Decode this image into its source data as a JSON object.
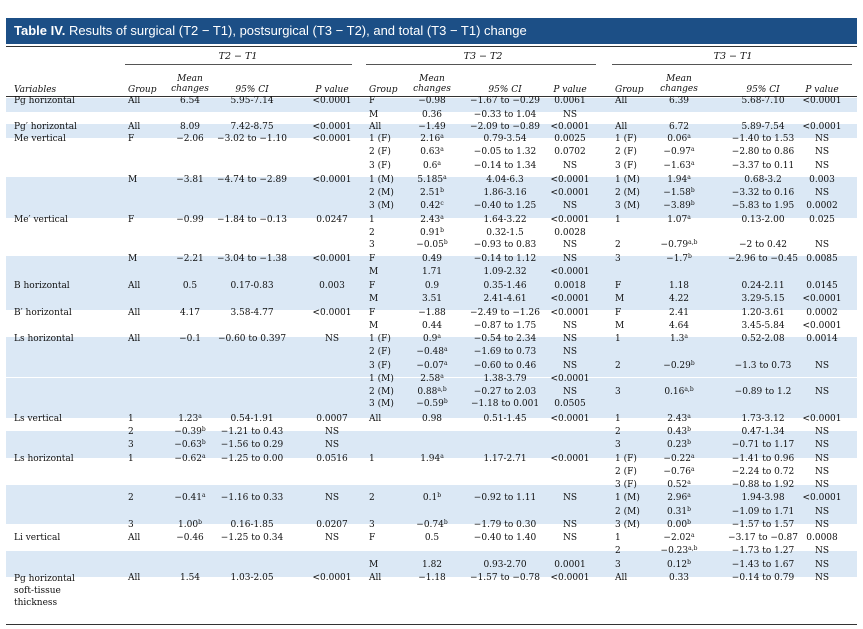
{
  "title": {
    "label": "Table IV.",
    "text": "Results of surgical (T2 − T1), postsurgical (T3 − T2), and total (T3 − T1) change"
  },
  "group_headers": [
    "T2 − T1",
    "T3 − T2",
    "T3 − T1"
  ],
  "column_headers": [
    "Variables",
    "Group",
    "Mean changes",
    "95% CI",
    "P value",
    "Group",
    "Mean changes",
    "95% CI",
    "P value",
    "Group",
    "Mean changes",
    "95% CI",
    "P value"
  ],
  "rows": [
    [
      "Pg horizontal",
      "All",
      "6.54",
      "5.95-7.14",
      "<0.0001",
      "F",
      "−0.98",
      "−1.67 to −0.29",
      "0.0061",
      "All",
      "6.39",
      "5.68-7.10",
      "<0.0001"
    ],
    [
      "",
      "",
      "",
      "",
      "",
      "M",
      "0.36",
      "−0.33 to 1.04",
      "NS",
      "",
      "",
      "",
      ""
    ],
    [
      "Pg′ horizontal",
      "All",
      "8.09",
      "7.42-8.75",
      "<0.0001",
      "All",
      "−1.49",
      "−2.09 to −0.89",
      "<0.0001",
      "All",
      "6.72",
      "5.89-7.54",
      "<0.0001"
    ],
    [
      "Me vertical",
      "F",
      "−2.06",
      "−3.02 to −1.10",
      "<0.0001",
      "1 (F)",
      "2.16ᵃ",
      "0.79-3.54",
      "0.0025",
      "1 (F)",
      "0.06ᵃ",
      "−1.40 to 1.53",
      "NS"
    ],
    [
      "",
      "",
      "",
      "",
      "",
      "2 (F)",
      "0.63ᵃ",
      "−0.05 to 1.32",
      "0.0702",
      "2 (F)",
      "−0.97ᵃ",
      "−2.80 to 0.86",
      "NS"
    ],
    [
      "",
      "",
      "",
      "",
      "",
      "3 (F)",
      "0.6ᵃ",
      "−0.14 to 1.34",
      "NS",
      "3 (F)",
      "−1.63ᵃ",
      "−3.37 to 0.11",
      "NS"
    ],
    [
      "",
      "M",
      "−3.81",
      "−4.74 to −2.89",
      "<0.0001",
      "1 (M)",
      "5.185ᵃ",
      "4.04-6.3",
      "<0.0001",
      "1 (M)",
      "1.94ᵃ",
      "0.68-3.2",
      "0.003"
    ],
    [
      "",
      "",
      "",
      "",
      "",
      "2 (M)",
      "2.51ᵇ",
      "1.86-3.16",
      "<0.0001",
      "2 (M)",
      "−1.58ᵇ",
      "−3.32 to 0.16",
      "NS"
    ],
    [
      "",
      "",
      "",
      "",
      "",
      "3 (M)",
      "0.42ᶜ",
      "−0.40 to 1.25",
      "NS",
      "3 (M)",
      "−3.89ᵇ",
      "−5.83 to 1.95",
      "0.0002"
    ],
    [
      "Me′ vertical",
      "F",
      "−0.99",
      "−1.84 to −0.13",
      "0.0247",
      "1",
      "2.43ᵃ",
      "1.64-3.22",
      "<0.0001",
      "1",
      "1.07ᵃ",
      "0.13-2.00",
      "0.025"
    ],
    [
      "",
      "",
      "",
      "",
      "",
      "2",
      "0.91ᵇ",
      "0.32-1.5",
      "0.0028",
      "",
      "",
      "",
      ""
    ],
    [
      "",
      "",
      "",
      "",
      "",
      "3",
      "−0.05ᵇ",
      "−0.93 to 0.83",
      "NS",
      "2",
      "−0.79ᵃ˒ᵇ",
      "−2 to 0.42",
      "NS"
    ],
    [
      "",
      "M",
      "−2.21",
      "−3.04 to −1.38",
      "<0.0001",
      "F",
      "0.49",
      "−0.14 to 1.12",
      "NS",
      "3",
      "−1.7ᵇ",
      "−2.96 to −0.45",
      "0.0085"
    ],
    [
      "",
      "",
      "",
      "",
      "",
      "M",
      "1.71",
      "1.09-2.32",
      "<0.0001",
      "",
      "",
      "",
      ""
    ],
    [
      "B horizontal",
      "All",
      "0.5",
      "0.17-0.83",
      "0.003",
      "F",
      "0.9",
      "0.35-1.46",
      "0.0018",
      "F",
      "1.18",
      "0.24-2.11",
      "0.0145"
    ],
    [
      "",
      "",
      "",
      "",
      "",
      "M",
      "3.51",
      "2.41-4.61",
      "<0.0001",
      "M",
      "4.22",
      "3.29-5.15",
      "<0.0001"
    ],
    [
      "B′ horizontal",
      "All",
      "4.17",
      "3.58-4.77",
      "<0.0001",
      "F",
      "−1.88",
      "−2.49 to −1.26",
      "<0.0001",
      "F",
      "2.41",
      "1.20-3.61",
      "0.0002"
    ],
    [
      "",
      "",
      "",
      "",
      "",
      "M",
      "0.44",
      "−0.87 to 1.75",
      "NS",
      "M",
      "4.64",
      "3.45-5.84",
      "<0.0001"
    ],
    [
      "Ls horizontal",
      "All",
      "−0.1",
      "−0.60 to 0.397",
      "NS",
      "1 (F)",
      "0.9ᵃ",
      "−0.54 to 2.34",
      "NS",
      "1",
      "1.3ᵃ",
      "0.52-2.08",
      "0.0014"
    ],
    [
      "",
      "",
      "",
      "",
      "",
      "2 (F)",
      "−0.48ᵃ",
      "−1.69 to 0.73",
      "NS",
      "",
      "",
      "",
      ""
    ],
    [
      "",
      "",
      "",
      "",
      "",
      "3 (F)",
      "−0.07ᵃ",
      "−0.60 to 0.46",
      "NS",
      "2",
      "−0.29ᵇ",
      "−1.3 to 0.73",
      "NS"
    ],
    [
      "",
      "",
      "",
      "",
      "",
      "1 (M)",
      "2.58ᵃ",
      "1.38-3.79",
      "<0.0001",
      "",
      "",
      "",
      ""
    ],
    [
      "",
      "",
      "",
      "",
      "",
      "2 (M)",
      "0.88ᵃ˒ᵇ",
      "−0.27 to 2.03",
      "NS",
      "3",
      "0.16ᵃ˒ᵇ",
      "−0.89 to 1.2",
      "NS"
    ],
    [
      "",
      "",
      "",
      "",
      "",
      "3 (M)",
      "−0.59ᵇ",
      "−1.18 to 0.001",
      "0.0505",
      "",
      "",
      "",
      ""
    ],
    [
      "Ls vertical",
      "1",
      "1.23ᵃ",
      "0.54-1.91",
      "0.0007",
      "All",
      "0.98",
      "0.51-1.45",
      "<0.0001",
      "1",
      "2.43ᵃ",
      "1.73-3.12",
      "<0.0001"
    ],
    [
      "",
      "2",
      "−0.39ᵇ",
      "−1.21 to 0.43",
      "NS",
      "",
      "",
      "",
      "",
      "2",
      "0.43ᵇ",
      "0.47-1.34",
      "NS"
    ],
    [
      "",
      "3",
      "−0.63ᵇ",
      "−1.56 to 0.29",
      "NS",
      "",
      "",
      "",
      "",
      "3",
      "0.23ᵇ",
      "−0.71 to 1.17",
      "NS"
    ],
    [
      "Ls horizontal",
      "1",
      "−0.62ᵃ",
      "−1.25 to 0.00",
      "0.0516",
      "1",
      "1.94ᵃ",
      "1.17-2.71",
      "<0.0001",
      "1 (F)",
      "−0.22ᵃ",
      "−1.41 to 0.96",
      "NS"
    ],
    [
      "",
      "",
      "",
      "",
      "",
      "",
      "",
      "",
      "",
      "2 (F)",
      "−0.76ᵃ",
      "−2.24 to 0.72",
      "NS"
    ],
    [
      "",
      "",
      "",
      "",
      "",
      "",
      "",
      "",
      "",
      "3 (F)",
      "0.52ᵃ",
      "−0.88 to 1.92",
      "NS"
    ],
    [
      "",
      "2",
      "−0.41ᵃ",
      "−1.16 to 0.33",
      "NS",
      "2",
      "0.1ᵇ",
      "−0.92 to 1.11",
      "NS",
      "1 (M)",
      "2.96ᵃ",
      "1.94-3.98",
      "<0.0001"
    ],
    [
      "",
      "",
      "",
      "",
      "",
      "",
      "",
      "",
      "",
      "2 (M)",
      "0.31ᵇ",
      "−1.09 to 1.71",
      "NS"
    ],
    [
      "",
      "3",
      "1.00ᵇ",
      "0.16-1.85",
      "0.0207",
      "3",
      "−0.74ᵇ",
      "−1.79 to 0.30",
      "NS",
      "3 (M)",
      "0.00ᵇ",
      "−1.57 to 1.57",
      "NS"
    ],
    [
      "Li vertical",
      "All",
      "−0.46",
      "−1.25 to 0.34",
      "NS",
      "F",
      "0.5",
      "−0.40 to 1.40",
      "NS",
      "1",
      "−2.02ᵃ",
      "−3.17 to −0.87",
      "0.0008"
    ],
    [
      "",
      "",
      "",
      "",
      "",
      "",
      "",
      "",
      "",
      "2",
      "−0.23ᵃ˒ᵇ",
      "−1.73 to 1.27",
      "NS"
    ],
    [
      "",
      "",
      "",
      "",
      "",
      "M",
      "1.82",
      "0.93-2.70",
      "0.0001",
      "3",
      "0.12ᵇ",
      "−1.43 to 1.67",
      "NS"
    ],
    [
      "Pg horizontal soft-tissue thickness",
      "All",
      "1.54",
      "1.03-2.05",
      "<0.0001",
      "All",
      "−1.18",
      "−1.57 to −0.78",
      "<0.0001",
      "All",
      "0.33",
      "−0.14 to 0.79",
      "NS"
    ]
  ]
}
